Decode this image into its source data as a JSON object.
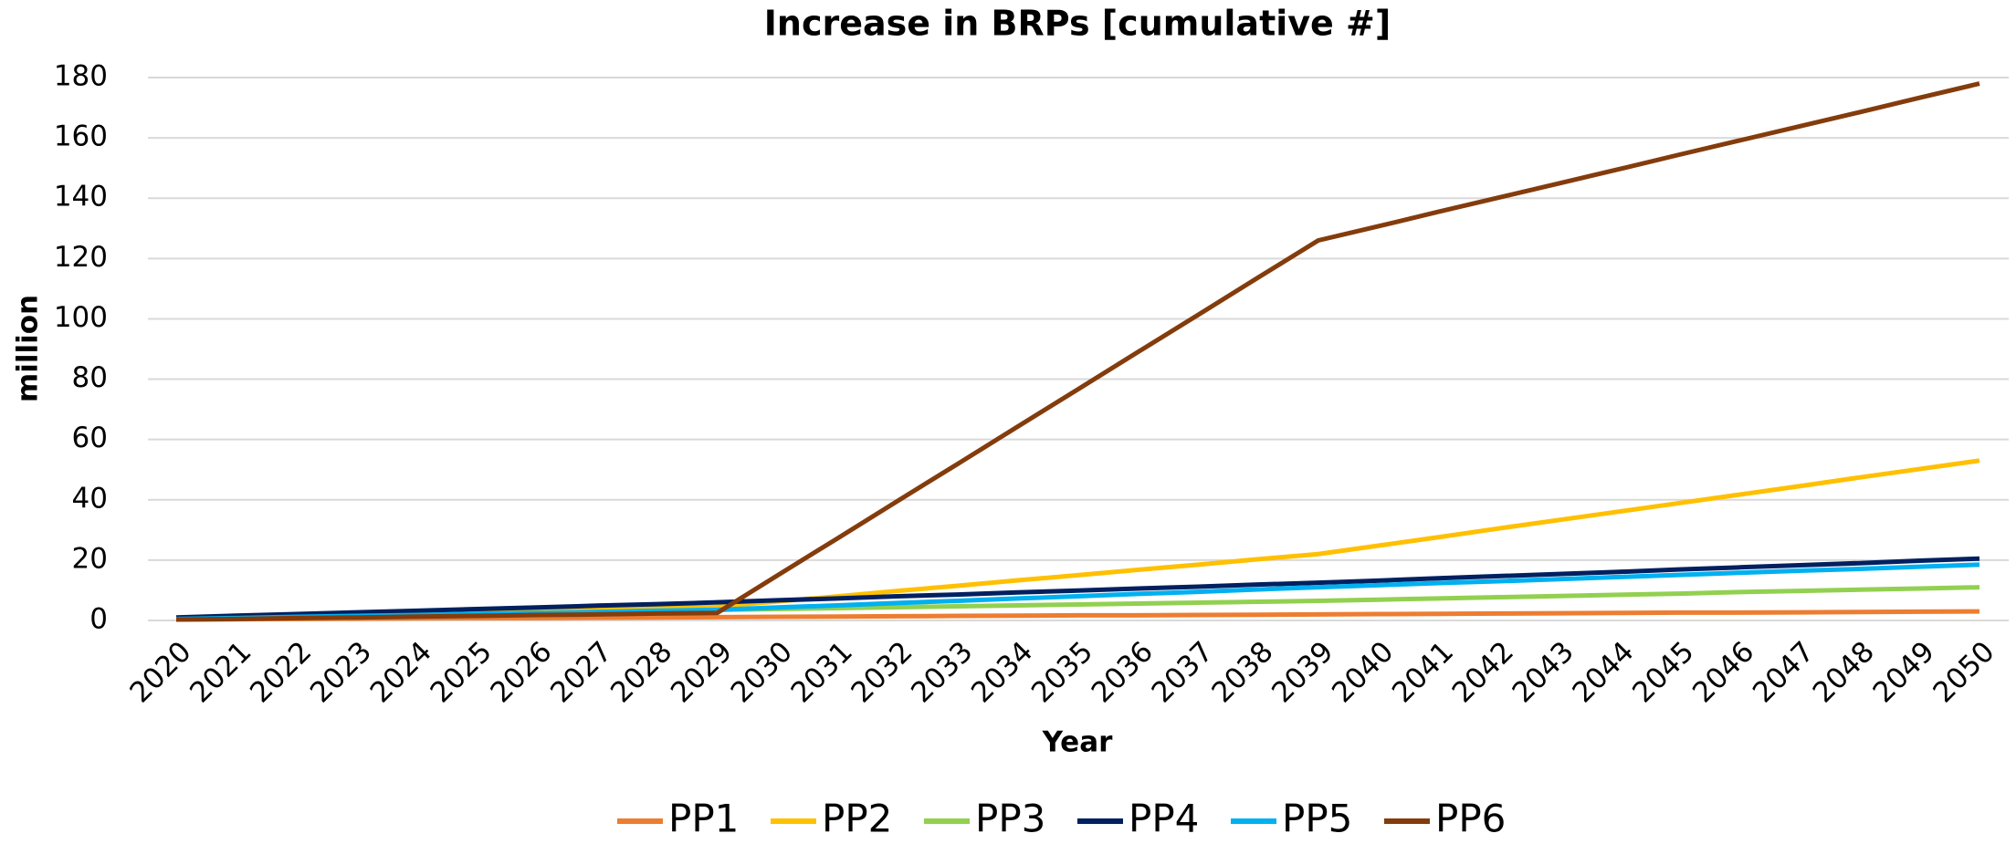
{
  "chart_data": {
    "type": "line",
    "title": "Increase in BRPs [cumulative #]",
    "x_label": "Year",
    "y_label": "million",
    "categories": [
      "2020",
      "2021",
      "2022",
      "2023",
      "2024",
      "2025",
      "2026",
      "2027",
      "2028",
      "2029",
      "2030",
      "2031",
      "2032",
      "2033",
      "2034",
      "2035",
      "2036",
      "2037",
      "2038",
      "2039",
      "2040",
      "2041",
      "2042",
      "2043",
      "2044",
      "2045",
      "2046",
      "2047",
      "2048",
      "2049",
      "2050"
    ],
    "ylim": [
      0,
      180
    ],
    "yticks": [
      0,
      20,
      40,
      60,
      80,
      100,
      120,
      140,
      160,
      180
    ],
    "grid": true,
    "legend": "bottom",
    "series": [
      {
        "name": "PP1",
        "color": "#ed7d31",
        "values": [
          0.3,
          0.4,
          0.5,
          0.6,
          0.7,
          0.8,
          0.8,
          0.9,
          1.0,
          1.1,
          1.2,
          1.3,
          1.4,
          1.5,
          1.6,
          1.7,
          1.7,
          1.8,
          1.9,
          2.0,
          2.1,
          2.2,
          2.3,
          2.4,
          2.5,
          2.6,
          2.6,
          2.7,
          2.8,
          2.9,
          3.0
        ]
      },
      {
        "name": "PP2",
        "color": "#ffc000",
        "values": [
          0.5,
          0.9,
          1.4,
          1.8,
          2.3,
          2.7,
          3.2,
          3.6,
          4.1,
          4.5,
          6.3,
          8.0,
          9.8,
          11.5,
          13.3,
          15.0,
          16.8,
          18.5,
          20.3,
          22.0,
          24.8,
          27.6,
          30.5,
          33.3,
          36.1,
          38.9,
          41.7,
          44.5,
          47.4,
          50.2,
          53.0
        ]
      },
      {
        "name": "PP3",
        "color": "#92d050",
        "values": [
          0.5,
          0.8,
          1.2,
          1.5,
          1.8,
          2.2,
          2.5,
          2.8,
          3.2,
          3.5,
          3.8,
          4.1,
          4.4,
          4.7,
          5.0,
          5.3,
          5.6,
          5.9,
          6.2,
          6.5,
          6.9,
          7.3,
          7.7,
          8.1,
          8.5,
          8.9,
          9.4,
          9.8,
          10.2,
          10.6,
          11.0
        ]
      },
      {
        "name": "PP4",
        "color": "#002060",
        "values": [
          1.0,
          1.6,
          2.1,
          2.7,
          3.2,
          3.8,
          4.3,
          4.9,
          5.4,
          6.0,
          6.7,
          7.3,
          8.0,
          8.6,
          9.3,
          9.9,
          10.6,
          11.2,
          11.9,
          12.5,
          13.2,
          14.0,
          14.7,
          15.4,
          16.1,
          16.9,
          17.6,
          18.3,
          19.0,
          19.8,
          20.5
        ]
      },
      {
        "name": "PP5",
        "color": "#00b0f0",
        "values": [
          0.5,
          0.8,
          1.2,
          1.5,
          1.8,
          2.2,
          2.5,
          2.8,
          3.2,
          3.5,
          4.3,
          5.0,
          5.8,
          6.5,
          7.3,
          8.0,
          8.8,
          9.5,
          10.3,
          11.0,
          11.7,
          12.4,
          13.0,
          13.7,
          14.4,
          15.1,
          15.8,
          16.5,
          17.1,
          17.8,
          18.5
        ]
      },
      {
        "name": "PP6",
        "color": "#843c0c",
        "values": [
          0.3,
          0.5,
          0.8,
          1.0,
          1.3,
          1.5,
          1.8,
          2.0,
          2.3,
          2.5,
          14.9,
          27.2,
          39.6,
          51.9,
          64.3,
          76.6,
          89.0,
          101.3,
          113.7,
          126.0,
          130.7,
          135.5,
          140.2,
          144.9,
          149.6,
          154.4,
          159.1,
          163.8,
          168.5,
          173.3,
          178.0
        ]
      }
    ]
  }
}
